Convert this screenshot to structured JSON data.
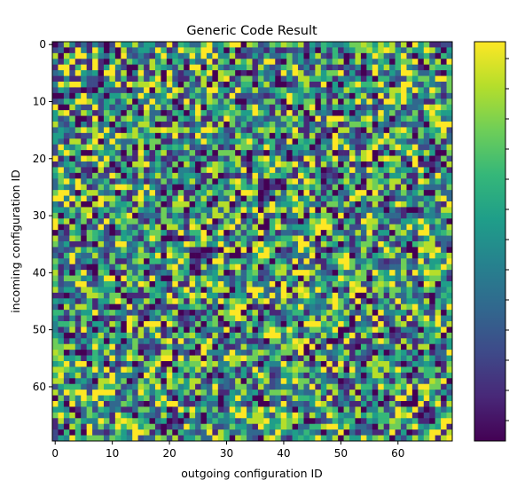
{
  "chart_data": {
    "type": "heatmap",
    "title": "Generic Code Result",
    "xlabel": "outgoing configuration ID",
    "ylabel": "incoming configuration ID",
    "rows": 70,
    "cols": 70,
    "x_ticks": [
      0,
      10,
      20,
      30,
      40,
      50,
      60
    ],
    "y_ticks": [
      0,
      10,
      20,
      30,
      40,
      50,
      60
    ],
    "colormap": "viridis",
    "colorbar": {
      "tick_count": 13,
      "labels_shown": false
    },
    "colorbar_stops": [
      "#440154",
      "#482878",
      "#3e4a89",
      "#31688e",
      "#26828e",
      "#1f9e89",
      "#35b779",
      "#6ece58",
      "#b5de2b",
      "#fde725"
    ],
    "symmetric": true,
    "levels": 10,
    "data_note": "Symmetric 70x70 matrix of 10 discrete colour levels; exact cell values are not readable from the image."
  }
}
